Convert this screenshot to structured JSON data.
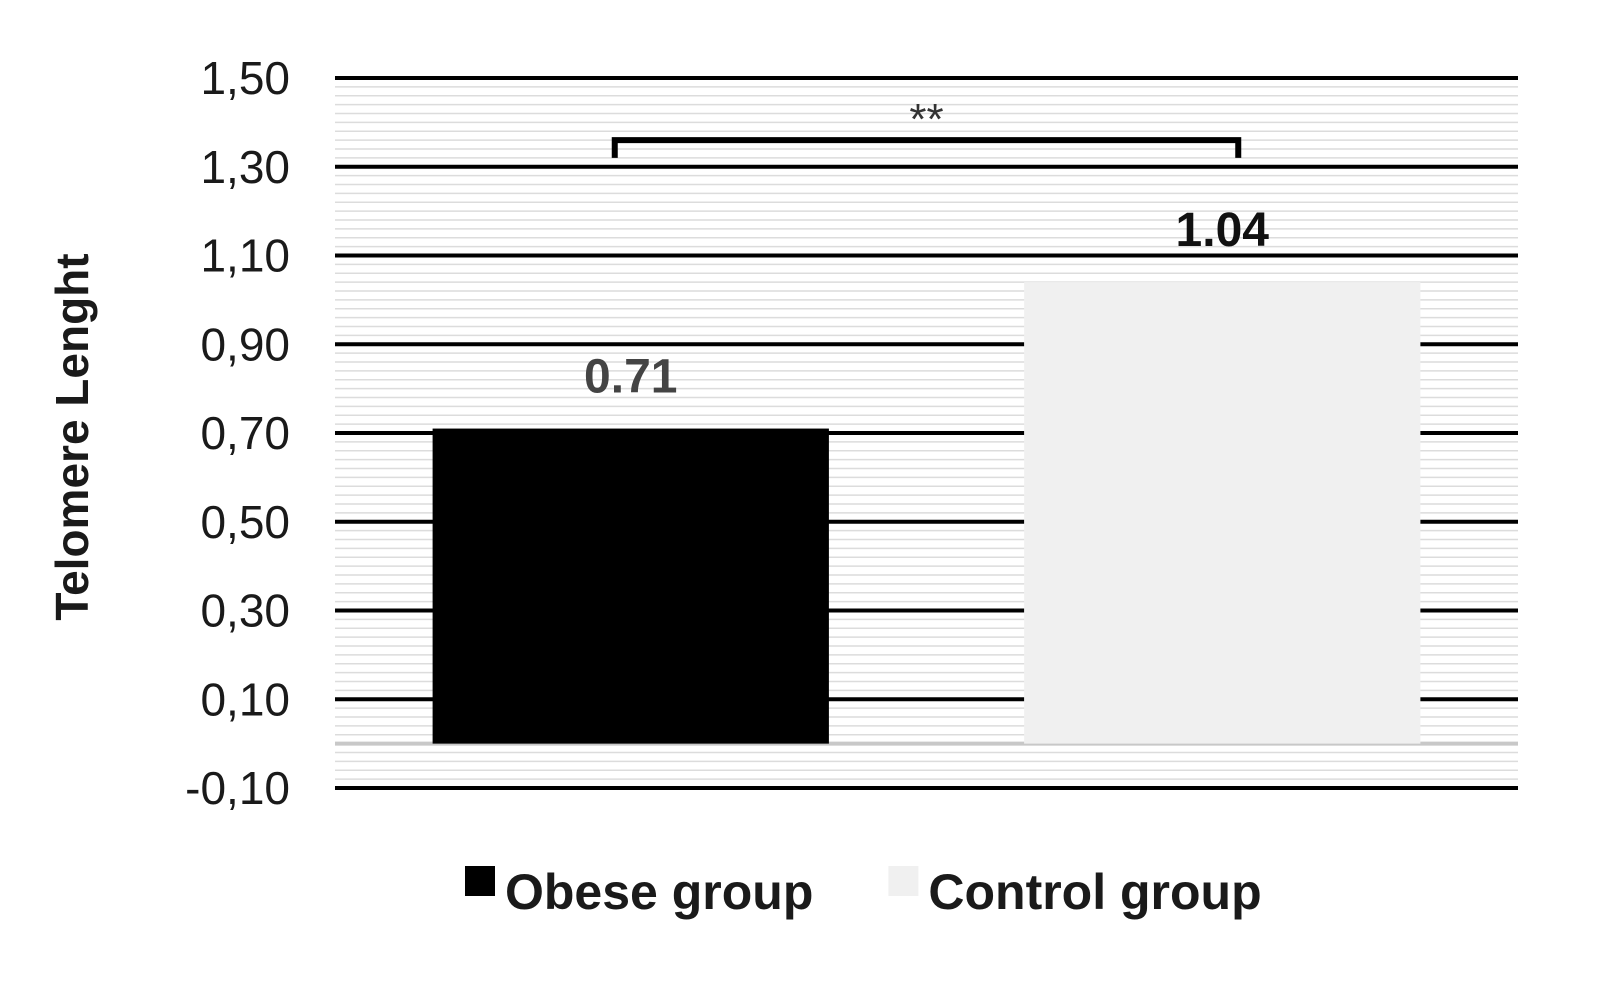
{
  "chart_data": {
    "type": "bar",
    "categories": [
      "Obese group",
      "Control group"
    ],
    "values": [
      0.71,
      1.04
    ],
    "data_labels": [
      "0.71",
      "1.04"
    ],
    "colors": [
      "#000000",
      "#f0f0f0"
    ],
    "label_colors": [
      "#444444",
      "#111111"
    ],
    "ylabel": "Telomere Lenght",
    "ylim": [
      -0.1,
      1.5
    ],
    "yticks": [
      -0.1,
      0.1,
      0.3,
      0.5,
      0.7,
      0.9,
      1.1,
      1.3,
      1.5
    ],
    "ytick_labels": [
      "-0,10",
      "0,10",
      "0,30",
      "0,50",
      "0,70",
      "0,90",
      "1,10",
      "1,30",
      "1,50"
    ],
    "minor_step": 0.02,
    "grid": true,
    "legend": {
      "position": "bottom",
      "entries": [
        {
          "label": "Obese group",
          "color": "#000000"
        },
        {
          "label": "Control group",
          "color": "#f0f0f0"
        }
      ]
    },
    "annotation": {
      "text": "**",
      "between": [
        "Obese group",
        "Control group"
      ],
      "y": 1.36,
      "tick_bottom": 1.32
    }
  }
}
